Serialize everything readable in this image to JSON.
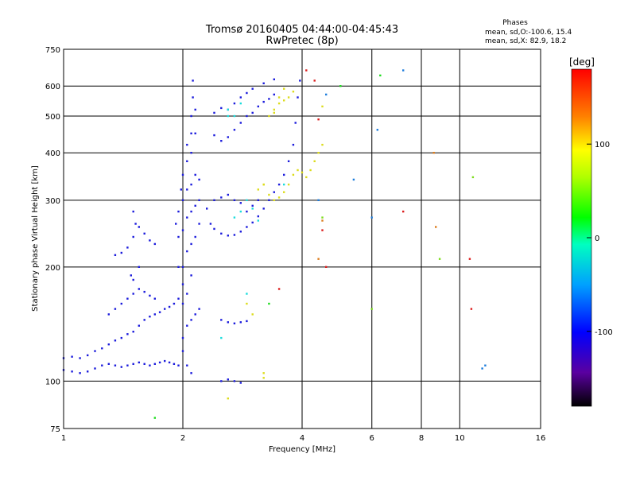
{
  "chart_data": {
    "type": "scatter",
    "title": "Tromsø 20160405 04:44:00-04:45:43",
    "subtitle": "RwPretec (8p)",
    "xlabel": "Frequency [MHz]",
    "ylabel": "Stationary phase Virtual Height [km]",
    "x_scale": "log",
    "y_scale": "log",
    "xlim": [
      1,
      16
    ],
    "ylim": [
      75,
      750
    ],
    "xticks": [
      1,
      2,
      4,
      6,
      8,
      10,
      16
    ],
    "xtick_labels": [
      "1",
      "2",
      "4",
      "6",
      "8",
      "10",
      "16"
    ],
    "yticks": [
      75,
      100,
      200,
      300,
      400,
      500,
      600,
      750
    ],
    "ytick_labels": [
      "75",
      "100",
      "200",
      "300",
      "400",
      "500",
      "600",
      "750"
    ],
    "grid": true,
    "phase_info": {
      "heading": "Phases",
      "line_o": "mean, sd,O:-100.6, 15.4",
      "line_x": "mean, sd,X:  82.9, 18.2"
    },
    "colorbar": {
      "label": "[deg]",
      "range": [
        -180,
        180
      ],
      "ticks": [
        100,
        0,
        -100
      ],
      "tick_labels": [
        "100",
        "0",
        "-100"
      ]
    },
    "series": [
      {
        "color": "#1c1cdc",
        "points": [
          [
            1.0,
            115
          ],
          [
            1.05,
            116
          ],
          [
            1.1,
            115
          ],
          [
            1.15,
            117
          ],
          [
            1.2,
            120
          ],
          [
            1.25,
            122
          ],
          [
            1.3,
            125
          ],
          [
            1.35,
            128
          ],
          [
            1.4,
            130
          ],
          [
            1.45,
            133
          ],
          [
            1.5,
            135
          ],
          [
            1.55,
            140
          ],
          [
            1.6,
            145
          ],
          [
            1.65,
            148
          ],
          [
            1.7,
            150
          ],
          [
            1.75,
            152
          ],
          [
            1.8,
            155
          ],
          [
            1.85,
            157
          ],
          [
            1.9,
            160
          ],
          [
            1.95,
            165
          ],
          [
            1.0,
            107
          ],
          [
            1.05,
            106
          ],
          [
            1.1,
            105
          ],
          [
            1.15,
            106
          ],
          [
            1.2,
            108
          ],
          [
            1.25,
            110
          ],
          [
            1.3,
            111
          ],
          [
            1.35,
            110
          ],
          [
            1.4,
            109
          ],
          [
            1.45,
            110
          ],
          [
            1.5,
            111
          ],
          [
            1.55,
            112
          ],
          [
            1.6,
            111
          ],
          [
            1.65,
            110
          ],
          [
            1.7,
            111
          ],
          [
            1.75,
            112
          ],
          [
            1.8,
            113
          ],
          [
            1.85,
            112
          ],
          [
            1.9,
            111
          ],
          [
            1.95,
            110
          ],
          [
            1.3,
            150
          ],
          [
            1.35,
            155
          ],
          [
            1.4,
            160
          ],
          [
            1.45,
            165
          ],
          [
            1.5,
            170
          ],
          [
            1.55,
            175
          ],
          [
            1.6,
            172
          ],
          [
            1.65,
            168
          ],
          [
            1.7,
            165
          ],
          [
            1.35,
            215
          ],
          [
            1.4,
            218
          ],
          [
            1.45,
            225
          ],
          [
            1.5,
            240
          ],
          [
            1.55,
            255
          ],
          [
            1.6,
            245
          ],
          [
            1.65,
            235
          ],
          [
            1.7,
            230
          ],
          [
            1.5,
            280
          ],
          [
            1.52,
            260
          ],
          [
            1.48,
            190
          ],
          [
            1.5,
            185
          ],
          [
            1.55,
            200
          ]
        ]
      },
      {
        "color": "#1c1cdc",
        "points": [
          [
            2.0,
            200
          ],
          [
            2.0,
            250
          ],
          [
            2.0,
            300
          ],
          [
            2.0,
            350
          ],
          [
            2.0,
            180
          ],
          [
            2.0,
            160
          ],
          [
            2.05,
            220
          ],
          [
            2.05,
            270
          ],
          [
            2.05,
            320
          ],
          [
            2.05,
            380
          ],
          [
            2.05,
            420
          ],
          [
            2.05,
            170
          ],
          [
            2.1,
            230
          ],
          [
            2.1,
            280
          ],
          [
            2.1,
            330
          ],
          [
            2.1,
            400
          ],
          [
            2.1,
            450
          ],
          [
            2.1,
            500
          ],
          [
            2.1,
            190
          ],
          [
            2.12,
            560
          ],
          [
            2.12,
            620
          ],
          [
            2.15,
            240
          ],
          [
            2.15,
            290
          ],
          [
            2.15,
            350
          ],
          [
            2.15,
            450
          ],
          [
            2.15,
            520
          ],
          [
            1.95,
            200
          ],
          [
            1.95,
            240
          ],
          [
            1.95,
            280
          ],
          [
            1.92,
            260
          ],
          [
            1.98,
            320
          ],
          [
            2.0,
            130
          ],
          [
            2.05,
            140
          ],
          [
            2.1,
            145
          ],
          [
            2.0,
            120
          ],
          [
            2.05,
            110
          ],
          [
            2.1,
            105
          ],
          [
            2.15,
            150
          ],
          [
            2.2,
            155
          ],
          [
            2.2,
            260
          ],
          [
            2.2,
            300
          ],
          [
            2.2,
            340
          ]
        ]
      },
      {
        "color": "#1c1cdc",
        "points": [
          [
            2.3,
            285
          ],
          [
            2.4,
            300
          ],
          [
            2.5,
            305
          ],
          [
            2.6,
            310
          ],
          [
            2.7,
            300
          ],
          [
            2.8,
            295
          ],
          [
            2.9,
            280
          ],
          [
            3.0,
            290
          ],
          [
            3.1,
            300
          ],
          [
            2.35,
            260
          ],
          [
            2.4,
            252
          ],
          [
            2.5,
            245
          ],
          [
            2.6,
            242
          ],
          [
            2.7,
            243
          ],
          [
            2.8,
            248
          ],
          [
            2.9,
            255
          ],
          [
            3.0,
            262
          ],
          [
            3.1,
            272
          ],
          [
            3.2,
            285
          ],
          [
            3.3,
            300
          ],
          [
            3.4,
            315
          ],
          [
            3.5,
            330
          ],
          [
            3.6,
            350
          ],
          [
            3.7,
            380
          ],
          [
            3.8,
            420
          ],
          [
            3.85,
            480
          ],
          [
            3.9,
            560
          ],
          [
            3.95,
            620
          ],
          [
            2.4,
            445
          ],
          [
            2.5,
            430
          ],
          [
            2.6,
            440
          ],
          [
            2.7,
            460
          ],
          [
            2.8,
            480
          ],
          [
            2.9,
            500
          ],
          [
            3.0,
            510
          ],
          [
            3.1,
            530
          ],
          [
            3.2,
            545
          ],
          [
            3.3,
            555
          ],
          [
            3.4,
            570
          ],
          [
            2.4,
            510
          ],
          [
            2.5,
            525
          ],
          [
            2.6,
            520
          ],
          [
            2.7,
            540
          ],
          [
            2.8,
            560
          ],
          [
            2.9,
            575
          ],
          [
            3.0,
            590
          ],
          [
            3.2,
            610
          ],
          [
            3.4,
            625
          ],
          [
            2.5,
            145
          ],
          [
            2.6,
            143
          ],
          [
            2.7,
            142
          ],
          [
            2.8,
            143
          ],
          [
            2.9,
            144
          ],
          [
            2.5,
            100
          ],
          [
            2.6,
            101
          ],
          [
            2.7,
            100
          ],
          [
            2.8,
            99
          ]
        ]
      },
      {
        "color": "#1cdcdc",
        "points": [
          [
            2.6,
            520
          ],
          [
            2.7,
            500
          ],
          [
            2.8,
            540
          ],
          [
            2.9,
            300
          ],
          [
            3.0,
            285
          ],
          [
            2.7,
            270
          ],
          [
            2.8,
            280
          ],
          [
            2.6,
            500
          ],
          [
            2.9,
            170
          ],
          [
            3.1,
            265
          ],
          [
            2.5,
            130
          ],
          [
            3.6,
            330
          ]
        ]
      },
      {
        "color": "#dcdc1c",
        "points": [
          [
            3.1,
            320
          ],
          [
            3.2,
            330
          ],
          [
            3.3,
            310
          ],
          [
            3.4,
            300
          ],
          [
            3.5,
            305
          ],
          [
            3.6,
            315
          ],
          [
            3.7,
            330
          ],
          [
            3.8,
            350
          ],
          [
            3.9,
            360
          ],
          [
            4.0,
            355
          ],
          [
            4.1,
            345
          ],
          [
            4.2,
            360
          ],
          [
            4.3,
            380
          ],
          [
            4.4,
            400
          ],
          [
            4.5,
            420
          ],
          [
            3.3,
            500
          ],
          [
            3.4,
            520
          ],
          [
            3.5,
            540
          ],
          [
            3.6,
            550
          ],
          [
            3.7,
            560
          ],
          [
            3.8,
            580
          ],
          [
            3.6,
            590
          ],
          [
            3.5,
            560
          ],
          [
            3.4,
            510
          ],
          [
            4.5,
            530
          ],
          [
            3.2,
            105
          ],
          [
            3.2,
            102
          ],
          [
            3.0,
            150
          ],
          [
            2.9,
            160
          ],
          [
            2.6,
            90
          ],
          [
            3.2,
            330
          ]
        ]
      },
      {
        "color": "#1cdc1c",
        "points": [
          [
            1.7,
            80
          ],
          [
            6.3,
            640
          ],
          [
            5.0,
            600
          ],
          [
            3.3,
            160
          ]
        ]
      },
      {
        "color": "#dc1c1c",
        "points": [
          [
            4.3,
            620
          ],
          [
            4.1,
            660
          ],
          [
            7.2,
            280
          ],
          [
            10.6,
            210
          ],
          [
            10.7,
            155
          ],
          [
            4.6,
            200
          ],
          [
            4.5,
            250
          ],
          [
            3.5,
            175
          ],
          [
            4.4,
            490
          ]
        ]
      },
      {
        "color": "#dc7c1c",
        "points": [
          [
            8.6,
            400
          ],
          [
            8.7,
            255
          ],
          [
            4.4,
            210
          ],
          [
            4.5,
            265
          ]
        ]
      },
      {
        "color": "#1c7cdc",
        "points": [
          [
            6.2,
            460
          ],
          [
            7.2,
            660
          ],
          [
            6.0,
            270
          ],
          [
            5.4,
            340
          ],
          [
            11.4,
            108
          ],
          [
            11.6,
            110
          ],
          [
            4.4,
            300
          ],
          [
            4.6,
            570
          ]
        ]
      },
      {
        "color": "#7cdc1c",
        "points": [
          [
            4.5,
            270
          ],
          [
            8.9,
            210
          ],
          [
            6.0,
            155
          ],
          [
            10.8,
            345
          ]
        ]
      }
    ]
  }
}
